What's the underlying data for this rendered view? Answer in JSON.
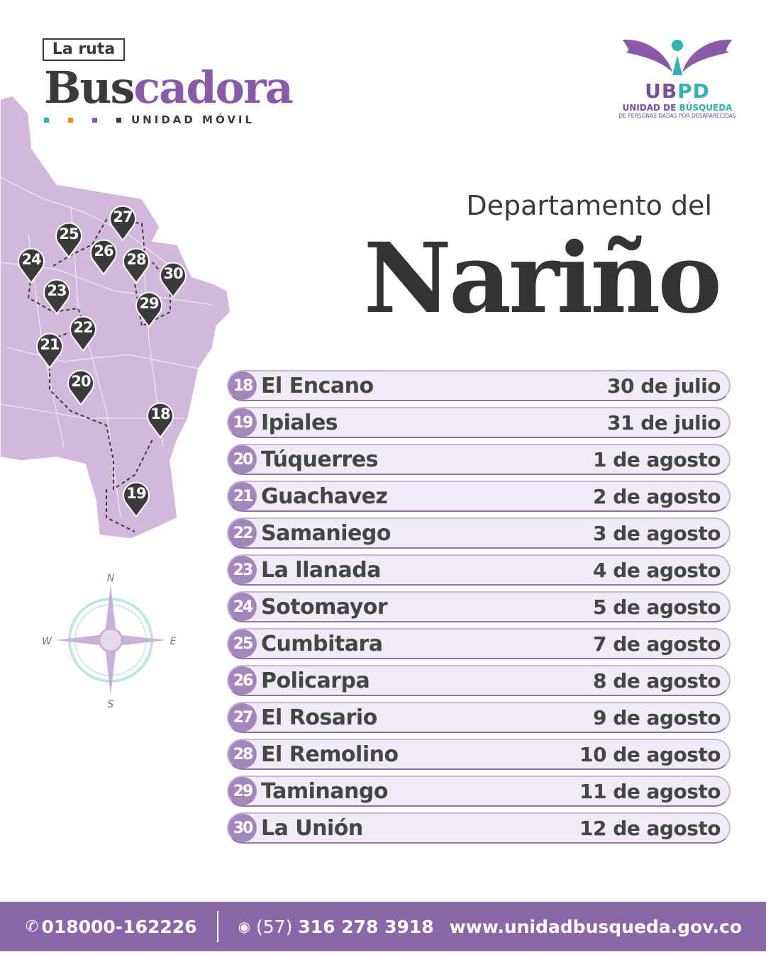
{
  "header": {
    "tag": "La ruta",
    "title_part1": "Bus",
    "title_part2": "cadora",
    "subtitle": "UNIDAD MÓVIL",
    "dot_colors": [
      "#2fb3ad",
      "#f08a24",
      "#8a5aa8",
      "#3a3a3a"
    ]
  },
  "logo": {
    "acronym_a": "UB",
    "acronym_b": "PD",
    "line1_a": "UNIDAD DE ",
    "line1_b": "BÚSQUEDA",
    "line2": "DE PERSONAS DADAS POR DESAPARECIDAS"
  },
  "heading": {
    "pre": "Departamento del",
    "main": "Nariño"
  },
  "compass": {
    "n": "N",
    "s": "S",
    "e": "E",
    "w": "W"
  },
  "stops": [
    {
      "num": "18",
      "place": "El Encano",
      "date": "30 de julio"
    },
    {
      "num": "19",
      "place": "Ipiales",
      "date": "31 de julio"
    },
    {
      "num": "20",
      "place": "Túquerres",
      "date": "1 de agosto"
    },
    {
      "num": "21",
      "place": "Guachavez",
      "date": "2 de agosto"
    },
    {
      "num": "22",
      "place": "Samaniego",
      "date": "3 de agosto"
    },
    {
      "num": "23",
      "place": "La llanada",
      "date": "4 de agosto"
    },
    {
      "num": "24",
      "place": "Sotomayor",
      "date": "5 de agosto"
    },
    {
      "num": "25",
      "place": "Cumbitara",
      "date": "7 de agosto"
    },
    {
      "num": "26",
      "place": "Policarpa",
      "date": "8 de agosto"
    },
    {
      "num": "27",
      "place": "El Rosario",
      "date": "9 de agosto"
    },
    {
      "num": "28",
      "place": "El Remolino",
      "date": "10 de agosto"
    },
    {
      "num": "29",
      "place": "Taminango",
      "date": "11 de agosto"
    },
    {
      "num": "30",
      "place": "La Unión",
      "date": "12 de agosto"
    }
  ],
  "footer": {
    "phone": "018000-162226",
    "whatsapp_prefix": "(57)",
    "whatsapp": "316 278 3918",
    "website": "www.unidadbusqueda.gov.co"
  },
  "colors": {
    "purple": "#8a67a8",
    "teal": "#2fb3ad",
    "map": "#d3b8de"
  }
}
